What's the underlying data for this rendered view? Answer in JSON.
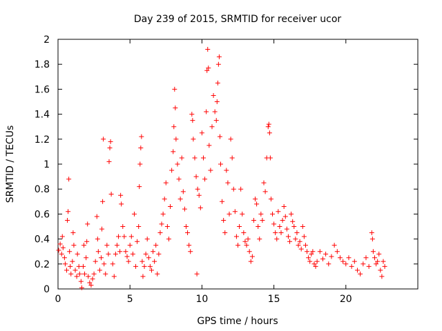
{
  "chart_data": {
    "type": "scatter",
    "title": "Day 239 of 2015, SRMTID for receiver ucor",
    "xlabel": "GPS time / hours",
    "ylabel": "SRMTID / TECUs",
    "xlim": [
      0,
      25
    ],
    "ylim": [
      0,
      2
    ],
    "xticks": [
      0,
      5,
      10,
      15,
      20
    ],
    "yticks": [
      0,
      0.2,
      0.4,
      0.6,
      0.8,
      1,
      1.2,
      1.4,
      1.6,
      1.8,
      2
    ],
    "xtick_labels": [
      "0",
      "5",
      "10",
      "15",
      "20"
    ],
    "ytick_labels": [
      "0",
      "0.2",
      "0.4",
      "0.6",
      "0.8",
      "1",
      "1.2",
      "1.4",
      "1.6",
      "1.8",
      "2"
    ],
    "marker": "+",
    "color": "#ff0000",
    "series": [
      {
        "name": "SRMTID",
        "points": [
          [
            0.05,
            0.31
          ],
          [
            0.15,
            0.36
          ],
          [
            0.25,
            0.28
          ],
          [
            0.3,
            0.42
          ],
          [
            0.35,
            0.33
          ],
          [
            0.45,
            0.25
          ],
          [
            0.5,
            0.2
          ],
          [
            0.6,
            0.15
          ],
          [
            0.65,
            0.55
          ],
          [
            0.7,
            0.62
          ],
          [
            0.75,
            0.88
          ],
          [
            0.8,
            0.3
          ],
          [
            0.85,
            0.18
          ],
          [
            0.9,
            0.12
          ],
          [
            1.0,
            0.22
          ],
          [
            1.05,
            0.45
          ],
          [
            1.1,
            0.35
          ],
          [
            1.2,
            0.15
          ],
          [
            1.3,
            0.1
          ],
          [
            1.35,
            0.28
          ],
          [
            1.45,
            0.18
          ],
          [
            1.5,
            0.12
          ],
          [
            1.6,
            0.06
          ],
          [
            1.65,
            0.01
          ],
          [
            1.75,
            0.18
          ],
          [
            1.8,
            0.35
          ],
          [
            1.85,
            0.12
          ],
          [
            1.95,
            0.25
          ],
          [
            2.0,
            0.38
          ],
          [
            2.05,
            0.52
          ],
          [
            2.1,
            0.1
          ],
          [
            2.2,
            0.05
          ],
          [
            2.3,
            0.03
          ],
          [
            2.4,
            0.08
          ],
          [
            2.5,
            0.12
          ],
          [
            2.6,
            0.22
          ],
          [
            2.7,
            0.58
          ],
          [
            2.75,
            0.4
          ],
          [
            2.8,
            0.3
          ],
          [
            2.9,
            0.15
          ],
          [
            3.0,
            0.25
          ],
          [
            3.05,
            0.48
          ],
          [
            3.1,
            0.7
          ],
          [
            3.15,
            1.2
          ],
          [
            3.2,
            0.2
          ],
          [
            3.3,
            0.12
          ],
          [
            3.4,
            0.35
          ],
          [
            3.5,
            0.28
          ],
          [
            3.55,
            1.02
          ],
          [
            3.6,
            1.13
          ],
          [
            3.65,
            1.18
          ],
          [
            3.7,
            0.76
          ],
          [
            3.8,
            0.2
          ],
          [
            3.9,
            0.1
          ],
          [
            4.0,
            0.28
          ],
          [
            4.1,
            0.35
          ],
          [
            4.2,
            0.42
          ],
          [
            4.3,
            0.3
          ],
          [
            4.35,
            0.75
          ],
          [
            4.4,
            0.68
          ],
          [
            4.5,
            0.5
          ],
          [
            4.6,
            0.42
          ],
          [
            4.7,
            0.3
          ],
          [
            4.8,
            0.26
          ],
          [
            4.9,
            0.22
          ],
          [
            5.0,
            0.35
          ],
          [
            5.1,
            0.42
          ],
          [
            5.2,
            0.28
          ],
          [
            5.3,
            0.6
          ],
          [
            5.4,
            0.18
          ],
          [
            5.5,
            0.38
          ],
          [
            5.6,
            0.5
          ],
          [
            5.65,
            0.82
          ],
          [
            5.7,
            1.0
          ],
          [
            5.75,
            1.13
          ],
          [
            5.8,
            1.22
          ],
          [
            5.85,
            0.22
          ],
          [
            5.9,
            0.1
          ],
          [
            6.0,
            0.18
          ],
          [
            6.1,
            0.28
          ],
          [
            6.2,
            0.4
          ],
          [
            6.3,
            0.25
          ],
          [
            6.4,
            0.18
          ],
          [
            6.5,
            0.15
          ],
          [
            6.6,
            0.3
          ],
          [
            6.7,
            0.22
          ],
          [
            6.8,
            0.35
          ],
          [
            6.9,
            0.12
          ],
          [
            7.0,
            0.28
          ],
          [
            7.1,
            0.45
          ],
          [
            7.2,
            0.52
          ],
          [
            7.3,
            0.6
          ],
          [
            7.4,
            0.72
          ],
          [
            7.5,
            0.85
          ],
          [
            7.6,
            0.5
          ],
          [
            7.7,
            0.4
          ],
          [
            7.8,
            0.66
          ],
          [
            7.9,
            0.95
          ],
          [
            8.0,
            1.1
          ],
          [
            8.05,
            1.3
          ],
          [
            8.1,
            1.6
          ],
          [
            8.15,
            1.45
          ],
          [
            8.2,
            1.2
          ],
          [
            8.3,
            1.0
          ],
          [
            8.4,
            0.88
          ],
          [
            8.5,
            0.72
          ],
          [
            8.6,
            1.05
          ],
          [
            8.7,
            0.78
          ],
          [
            8.8,
            0.64
          ],
          [
            8.9,
            0.5
          ],
          [
            9.0,
            0.45
          ],
          [
            9.1,
            0.35
          ],
          [
            9.2,
            0.3
          ],
          [
            9.3,
            1.4
          ],
          [
            9.35,
            1.35
          ],
          [
            9.4,
            1.2
          ],
          [
            9.5,
            1.05
          ],
          [
            9.6,
            0.9
          ],
          [
            9.65,
            0.12
          ],
          [
            9.7,
            0.8
          ],
          [
            9.8,
            0.75
          ],
          [
            9.9,
            0.65
          ],
          [
            10.0,
            1.25
          ],
          [
            10.1,
            1.05
          ],
          [
            10.2,
            0.88
          ],
          [
            10.3,
            1.42
          ],
          [
            10.35,
            1.75
          ],
          [
            10.4,
            1.92
          ],
          [
            10.45,
            1.77
          ],
          [
            10.5,
            1.15
          ],
          [
            10.6,
            0.95
          ],
          [
            10.7,
            1.3
          ],
          [
            10.8,
            1.55
          ],
          [
            10.9,
            1.42
          ],
          [
            11.0,
            1.35
          ],
          [
            11.05,
            1.5
          ],
          [
            11.1,
            1.65
          ],
          [
            11.15,
            1.8
          ],
          [
            11.2,
            1.86
          ],
          [
            11.25,
            1.22
          ],
          [
            11.3,
            1.0
          ],
          [
            11.4,
            0.7
          ],
          [
            11.5,
            0.55
          ],
          [
            11.6,
            0.45
          ],
          [
            11.7,
            0.95
          ],
          [
            11.8,
            0.85
          ],
          [
            11.9,
            0.6
          ],
          [
            12.0,
            1.2
          ],
          [
            12.1,
            1.05
          ],
          [
            12.2,
            0.8
          ],
          [
            12.3,
            0.62
          ],
          [
            12.4,
            0.42
          ],
          [
            12.5,
            0.35
          ],
          [
            12.6,
            0.5
          ],
          [
            12.7,
            0.8
          ],
          [
            12.8,
            0.6
          ],
          [
            12.9,
            0.45
          ],
          [
            13.0,
            0.38
          ],
          [
            13.1,
            0.35
          ],
          [
            13.2,
            0.4
          ],
          [
            13.3,
            0.3
          ],
          [
            13.4,
            0.22
          ],
          [
            13.5,
            0.26
          ],
          [
            13.6,
            0.55
          ],
          [
            13.7,
            0.72
          ],
          [
            13.8,
            0.68
          ],
          [
            13.9,
            0.5
          ],
          [
            14.0,
            0.4
          ],
          [
            14.1,
            0.6
          ],
          [
            14.2,
            0.55
          ],
          [
            14.3,
            0.85
          ],
          [
            14.4,
            0.78
          ],
          [
            14.5,
            1.05
          ],
          [
            14.6,
            1.3
          ],
          [
            14.65,
            1.32
          ],
          [
            14.7,
            1.25
          ],
          [
            14.75,
            1.05
          ],
          [
            14.8,
            0.72
          ],
          [
            14.9,
            0.6
          ],
          [
            15.0,
            0.52
          ],
          [
            15.1,
            0.45
          ],
          [
            15.2,
            0.4
          ],
          [
            15.3,
            0.62
          ],
          [
            15.4,
            0.5
          ],
          [
            15.5,
            0.45
          ],
          [
            15.6,
            0.55
          ],
          [
            15.7,
            0.66
          ],
          [
            15.8,
            0.58
          ],
          [
            15.9,
            0.48
          ],
          [
            16.0,
            0.42
          ],
          [
            16.1,
            0.38
          ],
          [
            16.2,
            0.6
          ],
          [
            16.3,
            0.54
          ],
          [
            16.4,
            0.5
          ],
          [
            16.5,
            0.4
          ],
          [
            16.6,
            0.45
          ],
          [
            16.7,
            0.35
          ],
          [
            16.8,
            0.38
          ],
          [
            16.9,
            0.32
          ],
          [
            17.0,
            0.5
          ],
          [
            17.1,
            0.42
          ],
          [
            17.2,
            0.35
          ],
          [
            17.3,
            0.3
          ],
          [
            17.4,
            0.25
          ],
          [
            17.5,
            0.22
          ],
          [
            17.6,
            0.28
          ],
          [
            17.7,
            0.3
          ],
          [
            17.8,
            0.2
          ],
          [
            17.9,
            0.18
          ],
          [
            18.0,
            0.22
          ],
          [
            18.2,
            0.3
          ],
          [
            18.4,
            0.24
          ],
          [
            18.6,
            0.28
          ],
          [
            18.8,
            0.2
          ],
          [
            19.0,
            0.26
          ],
          [
            19.2,
            0.35
          ],
          [
            19.4,
            0.3
          ],
          [
            19.6,
            0.25
          ],
          [
            19.8,
            0.22
          ],
          [
            20.0,
            0.2
          ],
          [
            20.2,
            0.25
          ],
          [
            20.4,
            0.18
          ],
          [
            20.6,
            0.22
          ],
          [
            20.8,
            0.15
          ],
          [
            21.0,
            0.12
          ],
          [
            21.2,
            0.2
          ],
          [
            21.4,
            0.25
          ],
          [
            21.6,
            0.18
          ],
          [
            21.8,
            0.45
          ],
          [
            21.85,
            0.4
          ],
          [
            21.9,
            0.3
          ],
          [
            22.0,
            0.25
          ],
          [
            22.1,
            0.2
          ],
          [
            22.2,
            0.22
          ],
          [
            22.3,
            0.28
          ],
          [
            22.4,
            0.15
          ],
          [
            22.5,
            0.1
          ],
          [
            22.6,
            0.22
          ],
          [
            22.7,
            0.18
          ]
        ]
      }
    ]
  }
}
